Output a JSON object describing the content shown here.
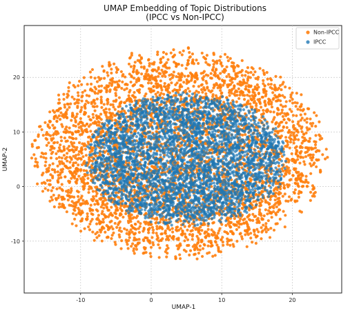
{
  "chart_data": {
    "type": "scatter",
    "title_line1": "UMAP Embedding of Topic Distributions",
    "title_line2": "(IPCC vs Non-IPCC)",
    "xlabel": "UMAP-1",
    "ylabel": "UMAP-2",
    "xlim": [
      -18,
      27
    ],
    "ylim": [
      -19.5,
      29.5
    ],
    "xticks": [
      -10,
      0,
      10,
      20
    ],
    "yticks": [
      -10,
      0,
      10,
      20
    ],
    "grid": true,
    "legend_placement": "top-right",
    "legend": [
      "Non-IPCC",
      "IPCC"
    ],
    "series": [
      {
        "name": "Non-IPCC",
        "color": "#ff7f0e",
        "distribution": {
          "center": [
            4.0,
            6.0
          ],
          "spread": [
            20.5,
            19.0
          ],
          "count": 4200
        }
      },
      {
        "name": "IPCC",
        "color": "#1f77b4",
        "distribution": {
          "center": [
            5.0,
            5.0
          ],
          "spread": [
            14.0,
            12.0
          ],
          "count": 3600
        }
      }
    ]
  }
}
